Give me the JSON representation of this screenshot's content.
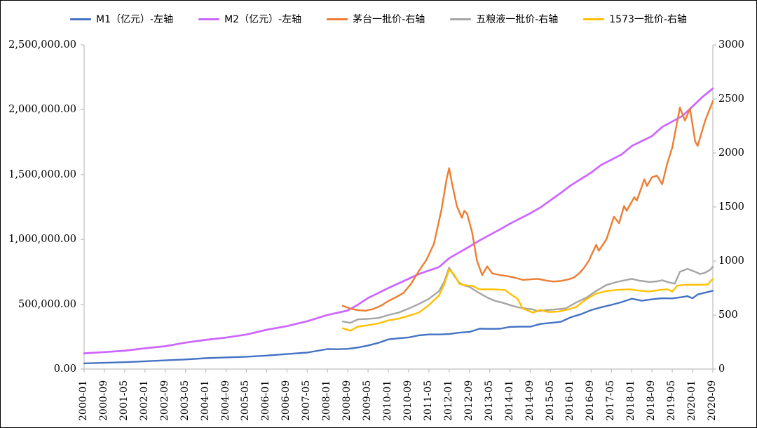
{
  "figure": {
    "background": "#FFFFFF",
    "border_color": "#000000",
    "axis_color": "#BFBFBF",
    "text_color": "#000000"
  },
  "chart_data": {
    "type": "line",
    "title": "",
    "grid": false,
    "legend_position": "top",
    "x_axis": {
      "start": "2000-01",
      "end": "2020-09",
      "tick_interval_months": 8,
      "tick_labels": [
        "2000-01",
        "2000-09",
        "2001-05",
        "2002-01",
        "2002-09",
        "2003-05",
        "2004-01",
        "2004-09",
        "2005-05",
        "2006-01",
        "2006-09",
        "2007-05",
        "2008-01",
        "2008-09",
        "2009-05",
        "2010-01",
        "2010-09",
        "2011-05",
        "2012-01",
        "2012-09",
        "2013-05",
        "2014-01",
        "2014-09",
        "2015-05",
        "2016-01",
        "2016-09",
        "2017-05",
        "2018-01",
        "2018-09",
        "2019-05",
        "2020-01",
        "2020-09"
      ]
    },
    "left_axis": {
      "min": 0,
      "max": 2500000,
      "tick_values": [
        0,
        500000,
        1000000,
        1500000,
        2000000,
        2500000
      ],
      "tick_labels": [
        "0.00",
        "500,000.00",
        "1,000,000.00",
        "1,500,000.00",
        "2,000,000.00",
        "2,500,000.00"
      ]
    },
    "right_axis": {
      "min": 0,
      "max": 3000,
      "tick_values": [
        0,
        500,
        1000,
        1500,
        2000,
        2500,
        3000
      ],
      "tick_labels": [
        "0",
        "500",
        "1000",
        "1500",
        "2000",
        "2500",
        "3000"
      ]
    },
    "series": [
      {
        "id": "m1",
        "name": "M1（亿元）-左轴",
        "color": "#4472C4",
        "axis": "left",
        "points": [
          [
            "2000-01",
            44000
          ],
          [
            "2000-09",
            48000
          ],
          [
            "2001-05",
            53000
          ],
          [
            "2002-01",
            60000
          ],
          [
            "2002-09",
            67000
          ],
          [
            "2003-05",
            74000
          ],
          [
            "2004-01",
            84000
          ],
          [
            "2004-09",
            90000
          ],
          [
            "2005-05",
            95000
          ],
          [
            "2006-01",
            104000
          ],
          [
            "2006-09",
            116000
          ],
          [
            "2007-05",
            127000
          ],
          [
            "2008-01",
            154000
          ],
          [
            "2008-05",
            153000
          ],
          [
            "2008-09",
            156000
          ],
          [
            "2009-01",
            166000
          ],
          [
            "2009-05",
            182000
          ],
          [
            "2009-09",
            202000
          ],
          [
            "2010-01",
            229000
          ],
          [
            "2010-05",
            237000
          ],
          [
            "2010-09",
            244000
          ],
          [
            "2011-01",
            260000
          ],
          [
            "2011-05",
            267000
          ],
          [
            "2011-09",
            267000
          ],
          [
            "2012-01",
            270000
          ],
          [
            "2012-05",
            281000
          ],
          [
            "2012-09",
            286000
          ],
          [
            "2013-01",
            311000
          ],
          [
            "2013-05",
            310000
          ],
          [
            "2013-09",
            311000
          ],
          [
            "2014-01",
            325000
          ],
          [
            "2014-05",
            327000
          ],
          [
            "2014-09",
            327000
          ],
          [
            "2015-01",
            348000
          ],
          [
            "2015-05",
            356000
          ],
          [
            "2015-09",
            364000
          ],
          [
            "2016-01",
            400000
          ],
          [
            "2016-05",
            423000
          ],
          [
            "2016-09",
            455000
          ],
          [
            "2017-01",
            477000
          ],
          [
            "2017-05",
            495000
          ],
          [
            "2017-09",
            516000
          ],
          [
            "2018-01",
            543000
          ],
          [
            "2018-05",
            527000
          ],
          [
            "2018-09",
            538000
          ],
          [
            "2019-01",
            546000
          ],
          [
            "2019-05",
            545000
          ],
          [
            "2019-09",
            556000
          ],
          [
            "2019-11",
            562000
          ],
          [
            "2020-01",
            546000
          ],
          [
            "2020-03",
            575000
          ],
          [
            "2020-05",
            585000
          ],
          [
            "2020-09",
            604000
          ]
        ]
      },
      {
        "id": "m2",
        "name": "M2（亿元）-左轴",
        "color": "#CC66FF",
        "axis": "left",
        "points": [
          [
            "2000-01",
            121000
          ],
          [
            "2000-09",
            131000
          ],
          [
            "2001-05",
            141000
          ],
          [
            "2002-01",
            160000
          ],
          [
            "2002-09",
            176000
          ],
          [
            "2003-05",
            204000
          ],
          [
            "2004-01",
            225000
          ],
          [
            "2004-09",
            243000
          ],
          [
            "2005-05",
            266000
          ],
          [
            "2006-01",
            303000
          ],
          [
            "2006-09",
            331000
          ],
          [
            "2007-05",
            369000
          ],
          [
            "2008-01",
            417000
          ],
          [
            "2008-09",
            452000
          ],
          [
            "2009-01",
            496000
          ],
          [
            "2009-05",
            548000
          ],
          [
            "2009-09",
            586000
          ],
          [
            "2010-01",
            625000
          ],
          [
            "2010-09",
            696000
          ],
          [
            "2011-01",
            733000
          ],
          [
            "2011-09",
            787000
          ],
          [
            "2012-01",
            855000
          ],
          [
            "2012-09",
            945000
          ],
          [
            "2013-01",
            992000
          ],
          [
            "2013-09",
            1077000
          ],
          [
            "2014-01",
            1121000
          ],
          [
            "2014-09",
            1202000
          ],
          [
            "2015-01",
            1246000
          ],
          [
            "2015-09",
            1358000
          ],
          [
            "2016-01",
            1417000
          ],
          [
            "2016-09",
            1515000
          ],
          [
            "2017-01",
            1575000
          ],
          [
            "2017-09",
            1655000
          ],
          [
            "2018-01",
            1720000
          ],
          [
            "2018-09",
            1797000
          ],
          [
            "2019-01",
            1867000
          ],
          [
            "2019-09",
            1952000
          ],
          [
            "2020-01",
            2026000
          ],
          [
            "2020-05",
            2100000
          ],
          [
            "2020-09",
            2164000
          ]
        ]
      },
      {
        "id": "maotai",
        "name": "茅台一批价-右轴",
        "color": "#ED7D31",
        "axis": "right",
        "points": [
          [
            "2008-07",
            585
          ],
          [
            "2008-10",
            560
          ],
          [
            "2009-01",
            545
          ],
          [
            "2009-04",
            540
          ],
          [
            "2009-07",
            555
          ],
          [
            "2009-10",
            585
          ],
          [
            "2010-01",
            630
          ],
          [
            "2010-04",
            665
          ],
          [
            "2010-07",
            705
          ],
          [
            "2010-10",
            790
          ],
          [
            "2011-01",
            905
          ],
          [
            "2011-04",
            1010
          ],
          [
            "2011-07",
            1160
          ],
          [
            "2011-10",
            1480
          ],
          [
            "2011-12",
            1760
          ],
          [
            "2012-01",
            1860
          ],
          [
            "2012-02",
            1730
          ],
          [
            "2012-04",
            1510
          ],
          [
            "2012-06",
            1400
          ],
          [
            "2012-07",
            1465
          ],
          [
            "2012-08",
            1440
          ],
          [
            "2012-10",
            1270
          ],
          [
            "2012-12",
            1000
          ],
          [
            "2013-02",
            870
          ],
          [
            "2013-04",
            950
          ],
          [
            "2013-06",
            885
          ],
          [
            "2013-09",
            870
          ],
          [
            "2013-12",
            860
          ],
          [
            "2014-03",
            845
          ],
          [
            "2014-06",
            825
          ],
          [
            "2014-09",
            830
          ],
          [
            "2014-12",
            835
          ],
          [
            "2015-03",
            820
          ],
          [
            "2015-06",
            810
          ],
          [
            "2015-09",
            815
          ],
          [
            "2015-12",
            830
          ],
          [
            "2016-02",
            845
          ],
          [
            "2016-04",
            880
          ],
          [
            "2016-06",
            930
          ],
          [
            "2016-08",
            1000
          ],
          [
            "2016-11",
            1150
          ],
          [
            "2016-12",
            1095
          ],
          [
            "2017-03",
            1200
          ],
          [
            "2017-06",
            1410
          ],
          [
            "2017-08",
            1350
          ],
          [
            "2017-10",
            1510
          ],
          [
            "2017-11",
            1465
          ],
          [
            "2018-02",
            1590
          ],
          [
            "2018-03",
            1560
          ],
          [
            "2018-06",
            1755
          ],
          [
            "2018-07",
            1695
          ],
          [
            "2018-09",
            1775
          ],
          [
            "2018-11",
            1790
          ],
          [
            "2019-01",
            1710
          ],
          [
            "2019-03",
            1900
          ],
          [
            "2019-05",
            2050
          ],
          [
            "2019-08",
            2420
          ],
          [
            "2019-10",
            2300
          ],
          [
            "2019-12",
            2410
          ],
          [
            "2020-02",
            2110
          ],
          [
            "2020-03",
            2065
          ],
          [
            "2020-06",
            2300
          ],
          [
            "2020-09",
            2480
          ]
        ]
      },
      {
        "id": "wuliangye",
        "name": "五粮液一批价-右轴",
        "color": "#A5A5A5",
        "axis": "right",
        "points": [
          [
            "2008-07",
            440
          ],
          [
            "2008-10",
            428
          ],
          [
            "2009-01",
            460
          ],
          [
            "2009-05",
            465
          ],
          [
            "2009-09",
            472
          ],
          [
            "2010-01",
            500
          ],
          [
            "2010-05",
            522
          ],
          [
            "2010-09",
            560
          ],
          [
            "2011-01",
            602
          ],
          [
            "2011-05",
            650
          ],
          [
            "2011-09",
            722
          ],
          [
            "2011-11",
            805
          ],
          [
            "2012-01",
            938
          ],
          [
            "2012-03",
            862
          ],
          [
            "2012-05",
            800
          ],
          [
            "2012-07",
            772
          ],
          [
            "2012-09",
            762
          ],
          [
            "2012-11",
            730
          ],
          [
            "2013-01",
            702
          ],
          [
            "2013-04",
            662
          ],
          [
            "2013-07",
            632
          ],
          [
            "2013-10",
            615
          ],
          [
            "2014-01",
            592
          ],
          [
            "2014-04",
            572
          ],
          [
            "2014-07",
            562
          ],
          [
            "2014-10",
            552
          ],
          [
            "2014-12",
            535
          ],
          [
            "2015-03",
            545
          ],
          [
            "2015-07",
            552
          ],
          [
            "2015-11",
            562
          ],
          [
            "2016-03",
            615
          ],
          [
            "2016-07",
            660
          ],
          [
            "2016-11",
            722
          ],
          [
            "2017-03",
            778
          ],
          [
            "2017-07",
            805
          ],
          [
            "2017-10",
            820
          ],
          [
            "2018-01",
            835
          ],
          [
            "2018-04",
            818
          ],
          [
            "2018-08",
            806
          ],
          [
            "2018-11",
            812
          ],
          [
            "2019-01",
            822
          ],
          [
            "2019-04",
            800
          ],
          [
            "2019-06",
            790
          ],
          [
            "2019-08",
            900
          ],
          [
            "2019-11",
            928
          ],
          [
            "2020-02",
            900
          ],
          [
            "2020-04",
            880
          ],
          [
            "2020-06",
            892
          ],
          [
            "2020-08",
            920
          ],
          [
            "2020-09",
            947
          ]
        ]
      },
      {
        "id": "guojiao1573",
        "name": "1573一批价-右轴",
        "color": "#FFC000",
        "axis": "right",
        "points": [
          [
            "2008-07",
            378
          ],
          [
            "2008-10",
            355
          ],
          [
            "2009-01",
            392
          ],
          [
            "2009-05",
            406
          ],
          [
            "2009-09",
            422
          ],
          [
            "2010-01",
            450
          ],
          [
            "2010-05",
            466
          ],
          [
            "2010-09",
            492
          ],
          [
            "2011-01",
            522
          ],
          [
            "2011-05",
            592
          ],
          [
            "2011-09",
            682
          ],
          [
            "2011-11",
            782
          ],
          [
            "2012-01",
            922
          ],
          [
            "2012-03",
            872
          ],
          [
            "2012-05",
            790
          ],
          [
            "2012-07",
            776
          ],
          [
            "2012-10",
            770
          ],
          [
            "2013-01",
            738
          ],
          [
            "2013-06",
            738
          ],
          [
            "2013-11",
            732
          ],
          [
            "2014-02",
            680
          ],
          [
            "2014-04",
            650
          ],
          [
            "2014-06",
            560
          ],
          [
            "2014-08",
            542
          ],
          [
            "2014-10",
            522
          ],
          [
            "2015-01",
            548
          ],
          [
            "2015-04",
            528
          ],
          [
            "2015-08",
            532
          ],
          [
            "2015-12",
            552
          ],
          [
            "2016-03",
            574
          ],
          [
            "2016-07",
            645
          ],
          [
            "2016-11",
            698
          ],
          [
            "2017-03",
            722
          ],
          [
            "2017-07",
            732
          ],
          [
            "2017-12",
            738
          ],
          [
            "2018-04",
            726
          ],
          [
            "2018-08",
            718
          ],
          [
            "2018-12",
            732
          ],
          [
            "2019-03",
            738
          ],
          [
            "2019-05",
            718
          ],
          [
            "2019-07",
            772
          ],
          [
            "2019-10",
            780
          ],
          [
            "2020-01",
            780
          ],
          [
            "2020-04",
            780
          ],
          [
            "2020-07",
            783
          ],
          [
            "2020-09",
            835
          ]
        ]
      }
    ]
  }
}
